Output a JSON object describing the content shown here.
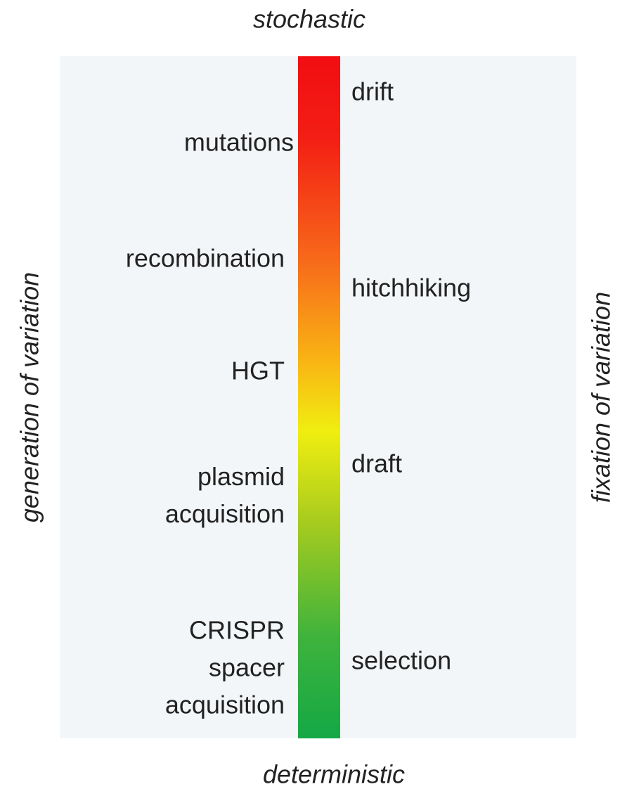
{
  "top_label": "stochastic",
  "bottom_label": "deterministic",
  "left_axis_label": "generation of variation",
  "right_axis_label": "fixation of variation",
  "left_items": [
    {
      "lines": [
        "mutations"
      ]
    },
    {
      "lines": [
        "recombination"
      ]
    },
    {
      "lines": [
        "HGT"
      ]
    },
    {
      "lines": [
        "plasmid",
        "acquisition"
      ]
    },
    {
      "lines": [
        "CRISPR",
        "spacer",
        "acquisition"
      ]
    }
  ],
  "right_items": [
    {
      "lines": [
        "drift"
      ]
    },
    {
      "lines": [
        "hitchhiking"
      ]
    },
    {
      "lines": [
        "draft"
      ]
    },
    {
      "lines": [
        "selection"
      ]
    }
  ]
}
